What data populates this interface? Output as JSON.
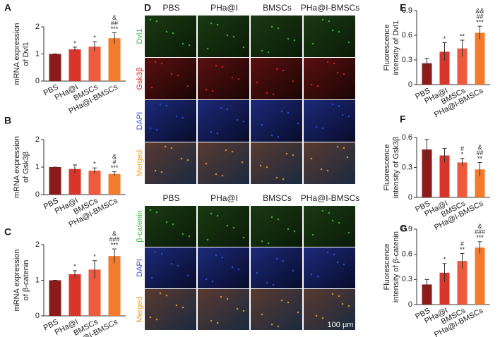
{
  "chart_data": [
    {
      "type": "bar",
      "panel": "A",
      "ylabel": [
        "mRNA expression",
        "of Dvl1"
      ],
      "categories": [
        "PBS",
        "PHa@I",
        "BMSCs",
        "PHa@I-BMSCs"
      ],
      "values": [
        1.0,
        1.17,
        1.27,
        1.58
      ],
      "errors": [
        0,
        0.08,
        0.18,
        0.2
      ],
      "annotations": [
        [],
        [
          "*"
        ],
        [
          "*"
        ],
        [
          "&",
          "##",
          "***"
        ]
      ],
      "colors": [
        "#8b1a1a",
        "#d9362b",
        "#ee5a3e",
        "#f27b2d"
      ],
      "ylim": [
        0,
        2
      ],
      "yticks": [
        0,
        1,
        2
      ]
    },
    {
      "type": "bar",
      "panel": "B",
      "ylabel": [
        "mRNA expression",
        "of Gsk3β"
      ],
      "categories": [
        "PBS",
        "PHa@I",
        "BMSCs",
        "PHa@I-BMSCs"
      ],
      "values": [
        1.0,
        0.93,
        0.87,
        0.75
      ],
      "errors": [
        0,
        0.15,
        0.1,
        0.08
      ],
      "annotations": [
        [],
        [],
        [
          "*"
        ],
        [
          "&",
          "#",
          "***"
        ]
      ],
      "colors": [
        "#8b1a1a",
        "#d9362b",
        "#ee5a3e",
        "#f27b2d"
      ],
      "ylim": [
        0,
        2
      ],
      "yticks": [
        0,
        1,
        2
      ]
    },
    {
      "type": "bar",
      "panel": "C",
      "ylabel": [
        "mRNA expression",
        "of β-catenin"
      ],
      "categories": [
        "PBS",
        "PHa@I",
        "BMSCs",
        "PHa@I-BMSCs"
      ],
      "values": [
        1.0,
        1.17,
        1.3,
        1.68
      ],
      "errors": [
        0,
        0.1,
        0.25,
        0.2
      ],
      "annotations": [
        [],
        [
          "*"
        ],
        [
          "*"
        ],
        [
          "&",
          "###",
          "***"
        ]
      ],
      "colors": [
        "#8b1a1a",
        "#d9362b",
        "#ee5a3e",
        "#f27b2d"
      ],
      "ylim": [
        0,
        2
      ],
      "yticks": [
        0,
        1,
        2
      ]
    },
    {
      "type": "bar",
      "panel": "E",
      "ylabel": [
        "Fluorescence",
        "intensity of Dvl1"
      ],
      "categories": [
        "PBS",
        "PHa@I",
        "BMSCs",
        "PHa@I-BMSCs"
      ],
      "values": [
        0.26,
        0.4,
        0.44,
        0.63
      ],
      "errors": [
        0.06,
        0.11,
        0.1,
        0.08
      ],
      "annotations": [
        [],
        [
          "*"
        ],
        [
          "**"
        ],
        [
          "&&",
          "##",
          "***"
        ]
      ],
      "colors": [
        "#8b1a1a",
        "#d9362b",
        "#ee5a3e",
        "#f27b2d"
      ],
      "ylim": [
        0,
        0.9
      ],
      "yticks": [
        0,
        0.3,
        0.6,
        0.9
      ]
    },
    {
      "type": "bar",
      "panel": "F",
      "ylabel": [
        "Fluorescence",
        "intensity of Gsk3β"
      ],
      "categories": [
        "PBS",
        "PHa@I",
        "BMSCs",
        "PHa@I-BMSCs"
      ],
      "values": [
        0.48,
        0.42,
        0.35,
        0.28
      ],
      "errors": [
        0.1,
        0.07,
        0.04,
        0.07
      ],
      "annotations": [
        [],
        [],
        [
          "#",
          "*"
        ],
        [
          "&",
          "##",
          "**"
        ]
      ],
      "colors": [
        "#8b1a1a",
        "#d9362b",
        "#ee5a3e",
        "#f27b2d"
      ],
      "ylim": [
        0,
        0.6
      ],
      "yticks": [
        0,
        0.3,
        0.6
      ]
    },
    {
      "type": "bar",
      "panel": "G",
      "ylabel": [
        "Fluorescence",
        "intensity of β-catenin"
      ],
      "categories": [
        "PBS",
        "PHa@I",
        "BMSCs",
        "PHa@I-BMSCs"
      ],
      "values": [
        0.24,
        0.38,
        0.52,
        0.68
      ],
      "errors": [
        0.06,
        0.11,
        0.09,
        0.07
      ],
      "annotations": [
        [],
        [
          "*"
        ],
        [
          "#",
          "**"
        ],
        [
          "&",
          "###",
          "***"
        ]
      ],
      "colors": [
        "#8b1a1a",
        "#d9362b",
        "#ee5a3e",
        "#f27b2d"
      ],
      "ylim": [
        0,
        0.9
      ],
      "yticks": [
        0,
        0.3,
        0.6,
        0.9
      ]
    }
  ],
  "panel_d": {
    "panel": "D",
    "top": {
      "columns": [
        "PBS",
        "PHa@I",
        "BMSCs",
        "PHa@I-BMSCs"
      ],
      "rows": [
        {
          "label": "Dvl1",
          "color": "#3fbf3f"
        },
        {
          "label": "Gsk3β",
          "color": "#e02020"
        },
        {
          "label": "DAPI",
          "color": "#3050e0"
        },
        {
          "label": "Merged",
          "color": "#f0a020"
        }
      ]
    },
    "bottom": {
      "columns": [
        "PBS",
        "PHa@I",
        "BMSCs",
        "PHa@I-BMSCs"
      ],
      "rows": [
        {
          "label": "β-catenin",
          "color": "#3fbf3f"
        },
        {
          "label": "DAPI",
          "color": "#3050e0"
        },
        {
          "label": "Merged",
          "color": "#f0a020"
        }
      ]
    },
    "scale_bar": "100 μm"
  }
}
